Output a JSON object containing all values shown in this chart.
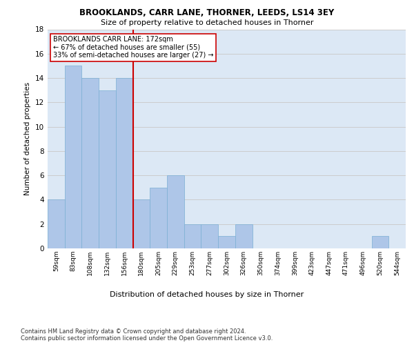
{
  "title1": "BROOKLANDS, CARR LANE, THORNER, LEEDS, LS14 3EY",
  "title2": "Size of property relative to detached houses in Thorner",
  "xlabel": "Distribution of detached houses by size in Thorner",
  "ylabel": "Number of detached properties",
  "categories": [
    "59sqm",
    "83sqm",
    "108sqm",
    "132sqm",
    "156sqm",
    "180sqm",
    "205sqm",
    "229sqm",
    "253sqm",
    "277sqm",
    "302sqm",
    "326sqm",
    "350sqm",
    "374sqm",
    "399sqm",
    "423sqm",
    "447sqm",
    "471sqm",
    "496sqm",
    "520sqm",
    "544sqm"
  ],
  "values": [
    4,
    15,
    14,
    13,
    14,
    4,
    5,
    6,
    2,
    2,
    1,
    2,
    0,
    0,
    0,
    0,
    0,
    0,
    0,
    1,
    0
  ],
  "bar_color": "#aec6e8",
  "bar_edge_color": "#7aafd4",
  "vline_index": 4.5,
  "vline_color": "#cc0000",
  "annotation_text": "BROOKLANDS CARR LANE: 172sqm\n← 67% of detached houses are smaller (55)\n33% of semi-detached houses are larger (27) →",
  "annotation_box_color": "#ffffff",
  "annotation_box_edge": "#cc0000",
  "ylim": [
    0,
    18
  ],
  "yticks": [
    0,
    2,
    4,
    6,
    8,
    10,
    12,
    14,
    16,
    18
  ],
  "grid_color": "#cccccc",
  "bg_color": "#dce8f5",
  "footer": "Contains HM Land Registry data © Crown copyright and database right 2024.\nContains public sector information licensed under the Open Government Licence v3.0."
}
